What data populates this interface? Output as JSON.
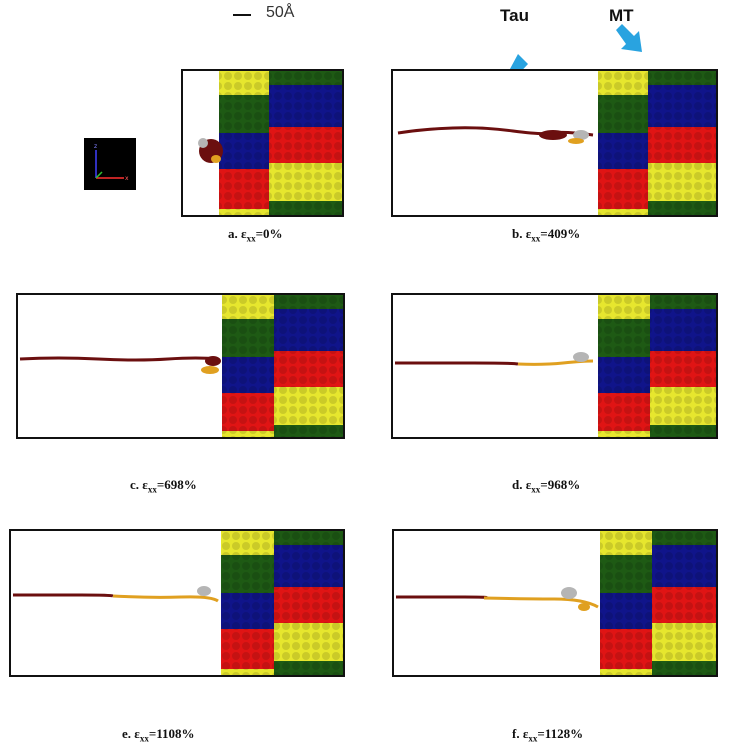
{
  "scale": {
    "label": "50Å"
  },
  "arrows": {
    "tau": "Tau",
    "mt": "MT"
  },
  "captions": {
    "a": {
      "prefix": "a. ε",
      "sub": "xx",
      "value": "=0%"
    },
    "b": {
      "prefix": "b. ε",
      "sub": "xx",
      "value": "=409%"
    },
    "c": {
      "prefix": "c. ε",
      "sub": "xx",
      "value": "=698%"
    },
    "d": {
      "prefix": "d. ε",
      "sub": "xx",
      "value": "=968%"
    },
    "e": {
      "prefix": "e. ε",
      "sub": "xx",
      "value": "=1108%"
    },
    "f": {
      "prefix": "f. ε",
      "sub": "xx",
      "value": "=1128%"
    }
  },
  "colors": {
    "tau_dark": "#6b0f0f",
    "tau_orange": "#e0a020",
    "tau_gray": "#b5b5b5",
    "mt_yellow": "#e6e62e",
    "mt_green": "#1e5a14",
    "mt_blue": "#10148a",
    "mt_red": "#e01414",
    "arrow_blue": "#29a3e0"
  }
}
